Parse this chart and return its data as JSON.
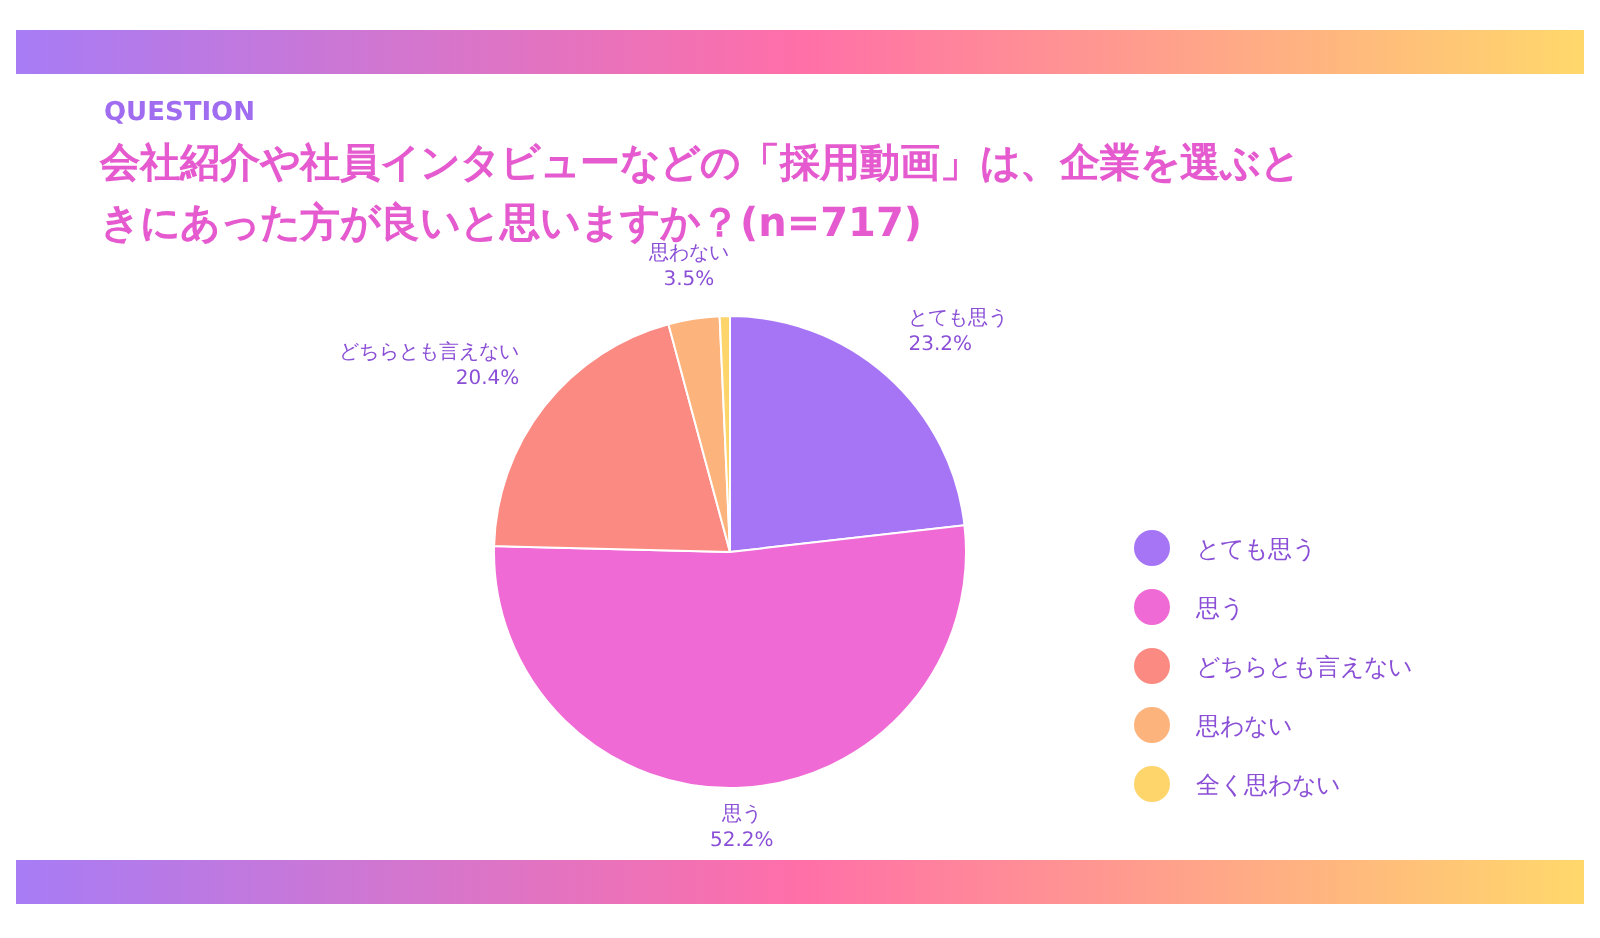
{
  "chart_data": {
    "type": "pie",
    "subtitle": "QUESTION",
    "title": "会社紹介や社員インタビューなどの「採用動画」は、企業を選ぶときにあった方が良いと思いますか？(n=717)",
    "categories": [
      "とても思う",
      "思う",
      "どちらとも言えない",
      "思わない",
      "全く思わない"
    ],
    "values": [
      23.2,
      52.2,
      20.4,
      3.5,
      0.7
    ],
    "colors": [
      "#a675f5",
      "#ef6ad5",
      "#fb8a82",
      "#fdb47c",
      "#fdd56b"
    ],
    "value_labels": [
      "23.2%",
      "52.2%",
      "20.4%",
      "3.5%",
      null
    ],
    "legend": "right"
  }
}
